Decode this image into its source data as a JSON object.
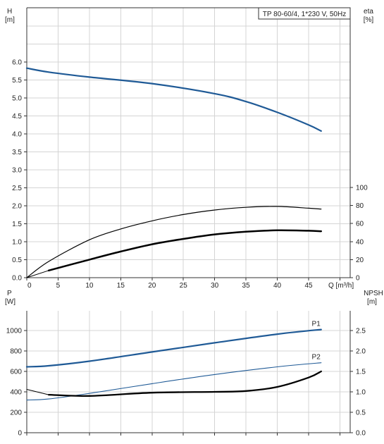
{
  "chart_data": [
    {
      "type": "line",
      "title": "TP 80-60/4, 1*230 V, 50Hz",
      "xlabel": "Q [m³/h]",
      "x_ticks": [
        "0",
        "5",
        "10",
        "15",
        "20",
        "25",
        "30",
        "35",
        "40",
        "45"
      ],
      "xlim": [
        0,
        52
      ],
      "ylabel_left": {
        "name": "H",
        "unit": "[m]"
      },
      "ylabel_right": {
        "name": "eta",
        "unit": "[%]"
      },
      "ylim_left": [
        0,
        7.2
      ],
      "ylim_right": [
        0,
        144
      ],
      "y_ticks_left": [
        "0.0",
        "0.5",
        "1.0",
        "1.5",
        "2.0",
        "2.5",
        "3.0",
        "3.5",
        "4.0",
        "4.5",
        "5.0",
        "5.5",
        "6.0"
      ],
      "y_ticks_right": [
        "0",
        "20",
        "40",
        "60",
        "80",
        "100"
      ],
      "grid": true,
      "series": [
        {
          "axis": "left",
          "color": "#1f5a96",
          "width": 2.2,
          "x": [
            0,
            3.5,
            10,
            20,
            30,
            35,
            40,
            45,
            47
          ],
          "y": [
            5.83,
            5.72,
            5.58,
            5.4,
            5.12,
            4.9,
            4.6,
            4.25,
            4.08
          ]
        },
        {
          "axis": "left",
          "color": "#1f5a96",
          "width": 1,
          "x": [
            0,
            3.5
          ],
          "y": [
            5.83,
            5.72
          ]
        },
        {
          "axis": "right",
          "color": "#000000",
          "width": 1.2,
          "x": [
            0,
            3.5,
            10,
            15,
            20,
            25,
            30,
            35,
            40,
            45,
            47
          ],
          "y": [
            0,
            18,
            42,
            54,
            63,
            70,
            75,
            78,
            79,
            77,
            76
          ]
        },
        {
          "axis": "right",
          "color": "#000000",
          "width": 2.5,
          "x": [
            3.5,
            10,
            15,
            20,
            25,
            30,
            35,
            40,
            45,
            47
          ],
          "y": [
            8,
            20,
            29,
            37,
            43,
            48,
            51,
            52.5,
            52,
            51.5
          ]
        },
        {
          "axis": "right",
          "color": "#000000",
          "width": 1,
          "x": [
            0,
            3.5
          ],
          "y": [
            0,
            8
          ]
        }
      ]
    },
    {
      "type": "line",
      "xlim": [
        0,
        52
      ],
      "ylabel_left": {
        "name": "P",
        "unit": "[W]"
      },
      "ylabel_right": {
        "name": "NPSH",
        "unit": "[m]"
      },
      "ylim_left": [
        0,
        1200
      ],
      "ylim_right": [
        0,
        3.0
      ],
      "y_ticks_left": [
        "0",
        "200",
        "400",
        "600",
        "800",
        "1000"
      ],
      "y_ticks_right": [
        "0.0",
        "0.5",
        "1.0",
        "1.5",
        "2.0",
        "2.5"
      ],
      "grid": true,
      "series": [
        {
          "name": "P1",
          "axis": "left",
          "color": "#1f5a96",
          "width": 2.2,
          "x": [
            0,
            3.5,
            10,
            20,
            30,
            40,
            47
          ],
          "y": [
            645,
            655,
            700,
            790,
            880,
            965,
            1010
          ]
        },
        {
          "axis": "left",
          "color": "#1f5a96",
          "width": 1,
          "x": [
            0,
            3.5
          ],
          "y": [
            645,
            655
          ]
        },
        {
          "name": "P2",
          "axis": "left",
          "color": "#1f5a96",
          "width": 1.1,
          "x": [
            0,
            3.5,
            10,
            20,
            30,
            40,
            47
          ],
          "y": [
            320,
            330,
            385,
            480,
            570,
            645,
            685
          ]
        },
        {
          "axis": "right",
          "color": "#000000",
          "width": 2.3,
          "x": [
            3.5,
            10,
            20,
            30,
            35,
            40,
            45,
            47
          ],
          "y": [
            0.93,
            0.9,
            0.98,
            1.0,
            1.02,
            1.12,
            1.35,
            1.5
          ]
        },
        {
          "axis": "right",
          "color": "#000000",
          "width": 1,
          "x": [
            0,
            3.5
          ],
          "y": [
            1.06,
            0.93
          ]
        }
      ]
    }
  ]
}
